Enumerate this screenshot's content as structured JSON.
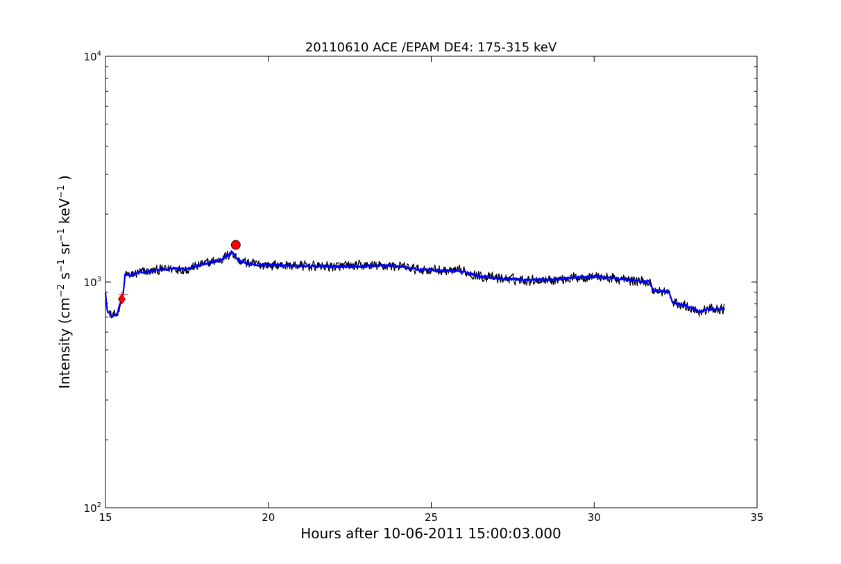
{
  "chart_data": {
    "type": "line",
    "title": "20110610 ACE /EPAM DE4: 175-315 keV",
    "xlabel": "Hours after 10-06-2011 15:00:03.000",
    "ylabel": {
      "prefix": "Intensity (cm",
      "exp1": "−2",
      "mid1": " s",
      "exp2": "−1",
      "mid2": " sr",
      "exp3": "−1",
      "mid3": " keV",
      "exp4": "−1",
      "suffix": " )"
    },
    "xlim": [
      15,
      35
    ],
    "ylim": [
      100,
      10000
    ],
    "yscale": "log",
    "grid": false,
    "xticks": [
      15,
      20,
      25,
      30,
      35
    ],
    "xtick_labels": [
      "15",
      "20",
      "25",
      "30",
      "35"
    ],
    "yticks": [
      {
        "value": 100,
        "base": "10",
        "exp": "2"
      },
      {
        "value": 1000,
        "base": "10",
        "exp": "3"
      },
      {
        "value": 10000,
        "base": "10",
        "exp": "4"
      }
    ],
    "series": [
      {
        "style": "raw",
        "color": "#000000",
        "x_range": [
          15.0,
          34.0
        ],
        "anchors": [
          [
            15.0,
            900
          ],
          [
            15.05,
            750
          ],
          [
            15.2,
            700
          ],
          [
            15.35,
            720
          ],
          [
            15.45,
            800
          ],
          [
            15.55,
            900
          ],
          [
            15.6,
            1080
          ],
          [
            15.8,
            1070
          ],
          [
            16.0,
            1100
          ],
          [
            16.5,
            1120
          ],
          [
            17.0,
            1150
          ],
          [
            17.5,
            1140
          ],
          [
            18.0,
            1200
          ],
          [
            18.5,
            1250
          ],
          [
            18.9,
            1350
          ],
          [
            19.1,
            1240
          ],
          [
            19.5,
            1200
          ],
          [
            20.0,
            1190
          ],
          [
            21.0,
            1180
          ],
          [
            22.0,
            1170
          ],
          [
            23.0,
            1180
          ],
          [
            23.9,
            1180
          ],
          [
            24.5,
            1140
          ],
          [
            25.0,
            1130
          ],
          [
            26.0,
            1110
          ],
          [
            26.5,
            1060
          ],
          [
            27.0,
            1040
          ],
          [
            28.0,
            1020
          ],
          [
            29.0,
            1030
          ],
          [
            29.5,
            1050
          ],
          [
            30.0,
            1060
          ],
          [
            31.0,
            1020
          ],
          [
            31.7,
            1000
          ],
          [
            31.8,
            920
          ],
          [
            32.3,
            900
          ],
          [
            32.4,
            810
          ],
          [
            33.0,
            770
          ],
          [
            33.2,
            740
          ],
          [
            33.6,
            760
          ],
          [
            34.0,
            760
          ]
        ],
        "noise_amplitude": 0.045
      },
      {
        "style": "smoothed",
        "color": "#0000ff",
        "x_range": [
          15.0,
          34.0
        ],
        "anchors": [
          [
            15.0,
            900
          ],
          [
            15.05,
            750
          ],
          [
            15.2,
            700
          ],
          [
            15.35,
            720
          ],
          [
            15.45,
            800
          ],
          [
            15.55,
            900
          ],
          [
            15.6,
            1080
          ],
          [
            15.8,
            1070
          ],
          [
            16.0,
            1100
          ],
          [
            16.5,
            1120
          ],
          [
            17.0,
            1150
          ],
          [
            17.5,
            1140
          ],
          [
            18.0,
            1200
          ],
          [
            18.5,
            1250
          ],
          [
            18.9,
            1350
          ],
          [
            19.1,
            1240
          ],
          [
            19.5,
            1200
          ],
          [
            20.0,
            1190
          ],
          [
            21.0,
            1180
          ],
          [
            22.0,
            1170
          ],
          [
            23.0,
            1180
          ],
          [
            23.9,
            1180
          ],
          [
            24.5,
            1140
          ],
          [
            25.0,
            1130
          ],
          [
            26.0,
            1110
          ],
          [
            26.5,
            1060
          ],
          [
            27.0,
            1040
          ],
          [
            28.0,
            1020
          ],
          [
            29.0,
            1030
          ],
          [
            29.5,
            1050
          ],
          [
            30.0,
            1060
          ],
          [
            31.0,
            1020
          ],
          [
            31.7,
            1000
          ],
          [
            31.8,
            920
          ],
          [
            32.3,
            900
          ],
          [
            32.4,
            810
          ],
          [
            33.0,
            770
          ],
          [
            33.2,
            740
          ],
          [
            33.6,
            760
          ],
          [
            34.0,
            760
          ]
        ],
        "noise_amplitude": 0.012
      }
    ],
    "markers": [
      {
        "kind": "onset-diamond",
        "x": 15.5,
        "y": 840,
        "color": "#ff0000"
      },
      {
        "kind": "onset-errorbar",
        "x": 15.5,
        "x_err": [
          15.4,
          15.7
        ],
        "y": 880,
        "color": "#ff0000"
      },
      {
        "kind": "peak-circle",
        "x": 19.0,
        "y": 1460,
        "color": "#ff0000"
      }
    ]
  }
}
